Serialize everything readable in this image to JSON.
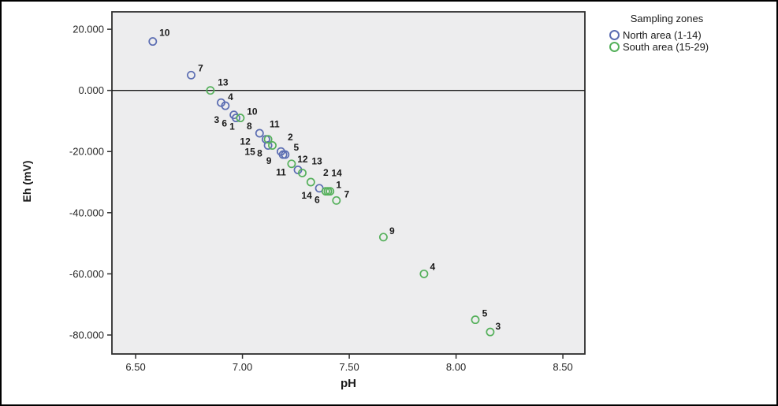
{
  "figure": {
    "background": "#ffffff",
    "border_color": "#000000"
  },
  "chart_data": {
    "type": "scatter",
    "xlabel": "pH",
    "ylabel": "Eh (mV)",
    "plot_bg": "#ededee",
    "axis_color": "#2e2e2e",
    "tick_label_color": "#262626",
    "point_label_color": "#1a1a1a",
    "x_ticks": [
      {
        "value": 6.5,
        "label": "6.50"
      },
      {
        "value": 7.0,
        "label": "7.00"
      },
      {
        "value": 7.5,
        "label": "7.50"
      },
      {
        "value": 8.0,
        "label": "8.00"
      },
      {
        "value": 8.5,
        "label": "8.50"
      }
    ],
    "y_ticks": [
      {
        "value": 20,
        "label": "20.000"
      },
      {
        "value": 0,
        "label": "0.000"
      },
      {
        "value": -20,
        "label": "-20.000"
      },
      {
        "value": -40,
        "label": "-40.000"
      },
      {
        "value": -60,
        "label": "-60.000"
      },
      {
        "value": -80,
        "label": "-80.000"
      }
    ],
    "xlim": [
      6.389,
      8.603
    ],
    "ylim": [
      -86.2,
      25.7
    ],
    "reference_line_y": 0,
    "grid": false,
    "legend": {
      "title": "Sampling zones",
      "position": "top-right-outside",
      "entries": [
        {
          "label": "North area (1-14)",
          "color": "#5b6db2"
        },
        {
          "label": "South area (15-29)",
          "color": "#55b05b"
        }
      ]
    },
    "series": [
      {
        "name": "North area (1-14)",
        "color": "#5b6db2",
        "points": [
          {
            "label": "10",
            "x": 6.58,
            "y": 16,
            "dx": 15,
            "dy": -11
          },
          {
            "label": "7",
            "x": 6.76,
            "y": 5,
            "dx": 12,
            "dy": -9
          },
          {
            "label": "4",
            "x": 6.9,
            "y": -4,
            "dx": 12,
            "dy": -7
          },
          {
            "label": "3",
            "x": 6.92,
            "y": -5,
            "dx": -11,
            "dy": 18
          },
          {
            "label": "6",
            "x": 6.96,
            "y": -8,
            "dx": -12,
            "dy": 11
          },
          {
            "label": "1",
            "x": 6.97,
            "y": -9,
            "dx": -5,
            "dy": 11
          },
          {
            "label": "8",
            "x": 7.08,
            "y": -14,
            "dx": -13,
            "dy": -9
          },
          {
            "label": "11",
            "x": 7.11,
            "y": -16,
            "dx": 11,
            "dy": -19
          },
          {
            "label": "12",
            "x": 7.12,
            "y": -18,
            "dx": -29,
            "dy": -5
          },
          {
            "label": "2",
            "x": 7.18,
            "y": -20,
            "dx": 12,
            "dy": -18
          },
          {
            "label": "9",
            "x": 7.19,
            "y": -21,
            "dx": -18,
            "dy": 8
          },
          {
            "label": "5",
            "x": 7.2,
            "y": -21,
            "dx": 14,
            "dy": -9
          },
          {
            "label": "13",
            "x": 7.26,
            "y": -26,
            "dx": 24,
            "dy": -11
          },
          {
            "label": "14",
            "x": 7.36,
            "y": -32,
            "dx": -16,
            "dy": 9
          }
        ]
      },
      {
        "name": "South area (15-29)",
        "color": "#55b05b",
        "points": [
          {
            "label": "13",
            "x": 6.85,
            "y": 0,
            "dx": 16,
            "dy": -10
          },
          {
            "label": "10",
            "x": 6.99,
            "y": -9,
            "dx": 15,
            "dy": -8
          },
          {
            "label": "15",
            "x": 7.12,
            "y": -16,
            "dx": -23,
            "dy": 16
          },
          {
            "label": "8",
            "x": 7.14,
            "y": -18,
            "dx": -16,
            "dy": 10
          },
          {
            "label": "12",
            "x": 7.23,
            "y": -24,
            "dx": 14,
            "dy": -6
          },
          {
            "label": "11",
            "x": 7.28,
            "y": -27,
            "dx": -27,
            "dy": -1
          },
          {
            "label": "2",
            "x": 7.32,
            "y": -30,
            "dx": 19,
            "dy": -12
          },
          {
            "label": "6",
            "x": 7.39,
            "y": -33,
            "dx": -11,
            "dy": 11
          },
          {
            "label": "14",
            "x": 7.4,
            "y": -33,
            "dx": 11,
            "dy": -23
          },
          {
            "label": "1",
            "x": 7.41,
            "y": -33,
            "dx": 11,
            "dy": -8
          },
          {
            "label": "7",
            "x": 7.44,
            "y": -36,
            "dx": 13,
            "dy": -8
          },
          {
            "label": "9",
            "x": 7.66,
            "y": -48,
            "dx": 11,
            "dy": -8
          },
          {
            "label": "4",
            "x": 7.85,
            "y": -60,
            "dx": 11,
            "dy": -9
          },
          {
            "label": "5",
            "x": 8.09,
            "y": -75,
            "dx": 12,
            "dy": -8
          },
          {
            "label": "3",
            "x": 8.16,
            "y": -79,
            "dx": 10,
            "dy": -7
          }
        ]
      }
    ]
  }
}
